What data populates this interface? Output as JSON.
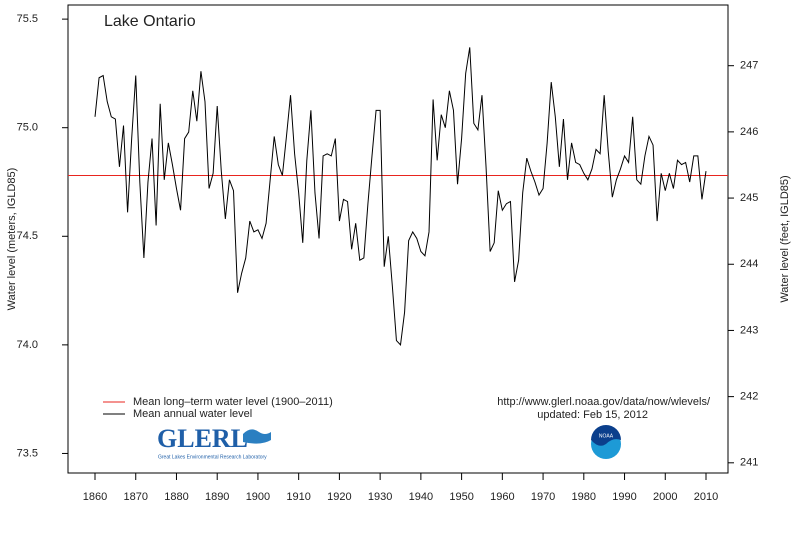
{
  "chart_data": {
    "type": "line",
    "title": "Lake Ontario",
    "ylabel": "Water level (meters, IGLD85)",
    "y2label": "Water level (feet, IGLD85)",
    "x": [
      1860,
      1861,
      1862,
      1863,
      1864,
      1865,
      1866,
      1867,
      1868,
      1869,
      1870,
      1871,
      1872,
      1873,
      1874,
      1875,
      1876,
      1877,
      1878,
      1879,
      1880,
      1881,
      1882,
      1883,
      1884,
      1885,
      1886,
      1887,
      1888,
      1889,
      1890,
      1891,
      1892,
      1893,
      1894,
      1895,
      1896,
      1897,
      1898,
      1899,
      1900,
      1901,
      1902,
      1903,
      1904,
      1905,
      1906,
      1907,
      1908,
      1909,
      1910,
      1911,
      1912,
      1913,
      1914,
      1915,
      1916,
      1917,
      1918,
      1919,
      1920,
      1921,
      1922,
      1923,
      1924,
      1925,
      1926,
      1927,
      1928,
      1929,
      1930,
      1931,
      1932,
      1933,
      1934,
      1935,
      1936,
      1937,
      1938,
      1939,
      1940,
      1941,
      1942,
      1943,
      1944,
      1945,
      1946,
      1947,
      1948,
      1949,
      1950,
      1951,
      1952,
      1953,
      1954,
      1955,
      1956,
      1957,
      1958,
      1959,
      1960,
      1961,
      1962,
      1963,
      1964,
      1965,
      1966,
      1967,
      1968,
      1969,
      1970,
      1971,
      1972,
      1973,
      1974,
      1975,
      1976,
      1977,
      1978,
      1979,
      1980,
      1981,
      1982,
      1983,
      1984,
      1985,
      1986,
      1987,
      1988,
      1989,
      1990,
      1991,
      1992,
      1993,
      1994,
      1995,
      1996,
      1997,
      1998,
      1999,
      2000,
      2001,
      2002,
      2003,
      2004,
      2005,
      2006,
      2007,
      2008,
      2009,
      2010
    ],
    "series": [
      {
        "name": "Mean annual water level",
        "color": "#000000",
        "values": [
          75.05,
          75.23,
          75.24,
          75.12,
          75.05,
          75.04,
          74.82,
          75.01,
          74.61,
          74.95,
          75.24,
          74.75,
          74.4,
          74.75,
          74.95,
          74.55,
          75.11,
          74.76,
          74.93,
          74.83,
          74.72,
          74.62,
          74.95,
          74.98,
          75.17,
          75.03,
          75.26,
          75.12,
          74.72,
          74.79,
          75.1,
          74.8,
          74.58,
          74.76,
          74.71,
          74.24,
          74.33,
          74.4,
          74.57,
          74.52,
          74.53,
          74.49,
          74.56,
          74.76,
          74.96,
          74.83,
          74.78,
          74.96,
          75.15,
          74.88,
          74.7,
          74.47,
          74.85,
          75.08,
          74.7,
          74.49,
          74.87,
          74.88,
          74.87,
          74.95,
          74.57,
          74.67,
          74.66,
          74.44,
          74.56,
          74.39,
          74.4,
          74.65,
          74.87,
          75.08,
          75.08,
          74.36,
          74.5,
          74.27,
          74.02,
          74.0,
          74.15,
          74.48,
          74.52,
          74.49,
          74.43,
          74.41,
          74.52,
          75.13,
          74.85,
          75.06,
          75.0,
          75.17,
          75.08,
          74.74,
          74.95,
          75.25,
          75.37,
          75.02,
          74.99,
          75.15,
          74.82,
          74.43,
          74.47,
          74.71,
          74.62,
          74.65,
          74.66,
          74.29,
          74.39,
          74.7,
          74.86,
          74.8,
          74.75,
          74.69,
          74.72,
          74.93,
          75.21,
          75.05,
          74.82,
          75.04,
          74.76,
          74.93,
          74.84,
          74.83,
          74.79,
          74.76,
          74.81,
          74.9,
          74.88,
          75.15,
          74.89,
          74.68,
          74.76,
          74.81,
          74.87,
          74.84,
          75.05,
          74.76,
          74.74,
          74.87,
          74.96,
          74.92,
          74.57,
          74.79,
          74.71,
          74.79,
          74.72,
          74.85,
          74.83,
          74.84,
          74.75,
          74.87,
          74.87,
          74.67,
          74.8
        ]
      }
    ],
    "reference_line": {
      "name": "Mean long–term water level (1900–2011)",
      "color": "#e8251f",
      "value": 74.78
    },
    "xlim": [
      1853.37,
      2015.4
    ],
    "xticks": [
      1860,
      1870,
      1880,
      1890,
      1900,
      1910,
      1920,
      1930,
      1940,
      1950,
      1960,
      1970,
      1980,
      1990,
      2000,
      2010
    ],
    "ylim": [
      73.41,
      75.565
    ],
    "yticks": [
      75.5,
      {
        "value": 75,
        "label": "75.0"
      },
      74.5,
      {
        "value": 74,
        "label": "74.0"
      },
      73.5
    ],
    "y2lim": [
      240.846,
      247.917
    ],
    "y2ticks": [
      247,
      246,
      245,
      244,
      243,
      242,
      241
    ],
    "annotations": [
      "http://www.glerl.noaa.gov/data/now/wlevels/",
      "updated: Feb 15, 2012"
    ],
    "logos": {
      "glerl": "GLERL",
      "glerl_subtitle": "Great Lakes Environmental Research Laboratory",
      "noaa": "NOAA"
    }
  }
}
